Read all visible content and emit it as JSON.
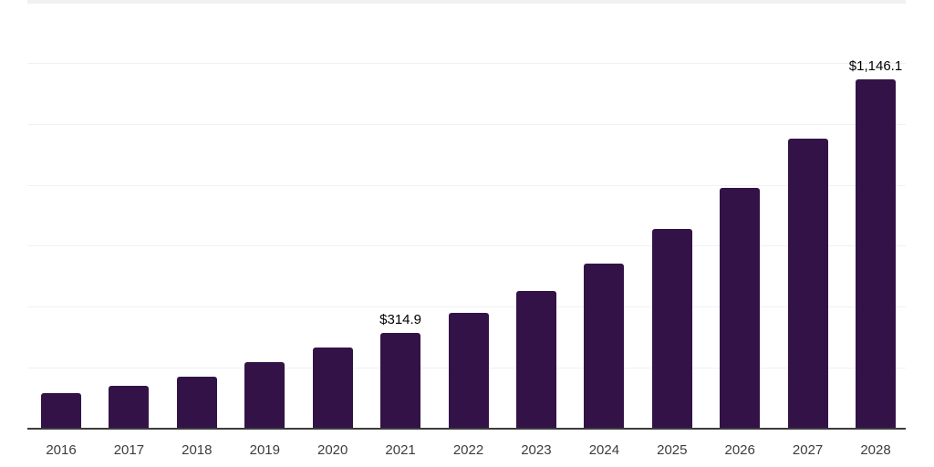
{
  "chart_data": {
    "type": "bar",
    "title": "",
    "xlabel": "",
    "ylabel": "",
    "categories": [
      "2016",
      "2017",
      "2018",
      "2019",
      "2020",
      "2021",
      "2022",
      "2023",
      "2024",
      "2025",
      "2026",
      "2027",
      "2028"
    ],
    "values": [
      117,
      141,
      171,
      218,
      266,
      314.9,
      381,
      451,
      541,
      655,
      790,
      950,
      1146.1
    ],
    "labeled_points": [
      {
        "category": "2021",
        "label": "$314.9"
      },
      {
        "category": "2028",
        "label": "$1,146.1"
      }
    ],
    "ylim": [
      0,
      1406
    ],
    "gridline_interval": 200,
    "grid": "horizontal-only",
    "legend": "none",
    "y_tick_labels_shown": false,
    "colors": {
      "background": "#ffffff",
      "bar": "#331347",
      "axis_line": "#3c3c3c",
      "gridline": "#f1f1f4",
      "tick_label": "#3d3d3d",
      "data_label": "#000000"
    }
  }
}
